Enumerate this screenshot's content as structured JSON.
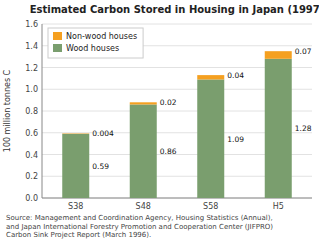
{
  "chart_data": {
    "type": "bar",
    "stacked": true,
    "title": "Estimated Carbon Stored in Housing in Japan (1997)",
    "ylabel": "100 million tonnes C",
    "categories": [
      "S38",
      "S48",
      "S58",
      "H5"
    ],
    "series": [
      {
        "name": "Wood houses",
        "color": "#7a9e6e",
        "values": [
          0.59,
          0.86,
          1.09,
          1.28
        ]
      },
      {
        "name": "Non-wood houses",
        "color": "#f5a020",
        "values": [
          0.004,
          0.02,
          0.04,
          0.07
        ]
      }
    ],
    "ylim": [
      0,
      1.6
    ],
    "yticks": [
      {
        "value": 0.0,
        "label": "0.0"
      },
      0.2,
      0.4,
      0.6,
      0.8,
      {
        "value": 1.0,
        "label": "1.0"
      },
      1.2,
      1.4,
      1.6
    ],
    "grid": true,
    "legend": "upper-left",
    "data_labels": true,
    "source": "Source: Management and Coordination Agency, Housing Statistics (Annual),\nand Japan International Forestry Promotion and Cooperation Center (JIFPRO)\nCarbon Sink Project Report (March 1996)."
  }
}
